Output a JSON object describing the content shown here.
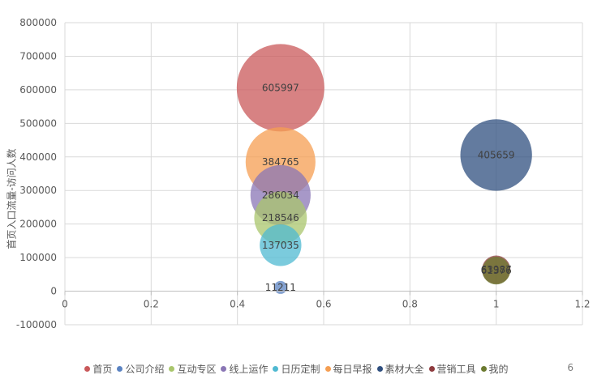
{
  "chart_data": {
    "type": "bubble",
    "title": "",
    "xlabel": "",
    "ylabel": "首页入口流量-访问人数",
    "xlim": [
      0,
      1.2
    ],
    "ylim": [
      -100000,
      800000
    ],
    "x_ticks": [
      "0",
      "0.2",
      "0.4",
      "0.6",
      "0.8",
      "1",
      "1.2"
    ],
    "y_ticks": [
      "-100000",
      "0",
      "100000",
      "200000",
      "300000",
      "400000",
      "500000",
      "600000",
      "700000",
      "800000"
    ],
    "grid": true,
    "legend_position": "bottom",
    "series": [
      {
        "name": "首页",
        "color": "#C9585A",
        "points": [
          {
            "x": 0.5,
            "y": 605997,
            "label": "605997"
          }
        ]
      },
      {
        "name": "公司介绍",
        "color": "#5B83C2",
        "points": [
          {
            "x": 0.5,
            "y": 11211,
            "label": "11211"
          }
        ]
      },
      {
        "name": "互动专区",
        "color": "#A9C66C",
        "points": [
          {
            "x": 0.5,
            "y": 218546,
            "label": "218546"
          }
        ]
      },
      {
        "name": "线上运作",
        "color": "#8A76B5",
        "points": [
          {
            "x": 0.5,
            "y": 286034,
            "label": "286034"
          }
        ]
      },
      {
        "name": "日历定制",
        "color": "#4FB9D1",
        "points": [
          {
            "x": 0.5,
            "y": 137035,
            "label": "137035"
          }
        ]
      },
      {
        "name": "每日早报",
        "color": "#F59E52",
        "points": [
          {
            "x": 0.5,
            "y": 384765,
            "label": "384765"
          }
        ]
      },
      {
        "name": "素材大全",
        "color": "#2F4F7F",
        "points": [
          {
            "x": 1,
            "y": 405659,
            "label": "405659"
          }
        ]
      },
      {
        "name": "营销工具",
        "color": "#8E3B3E",
        "points": [
          {
            "x": 1,
            "y": 63987,
            "label": "63987"
          }
        ]
      },
      {
        "name": "我的",
        "color": "#6B7A2F",
        "points": [
          {
            "x": 1,
            "y": 61376,
            "label": "61376"
          }
        ]
      }
    ]
  },
  "page_number": "6"
}
